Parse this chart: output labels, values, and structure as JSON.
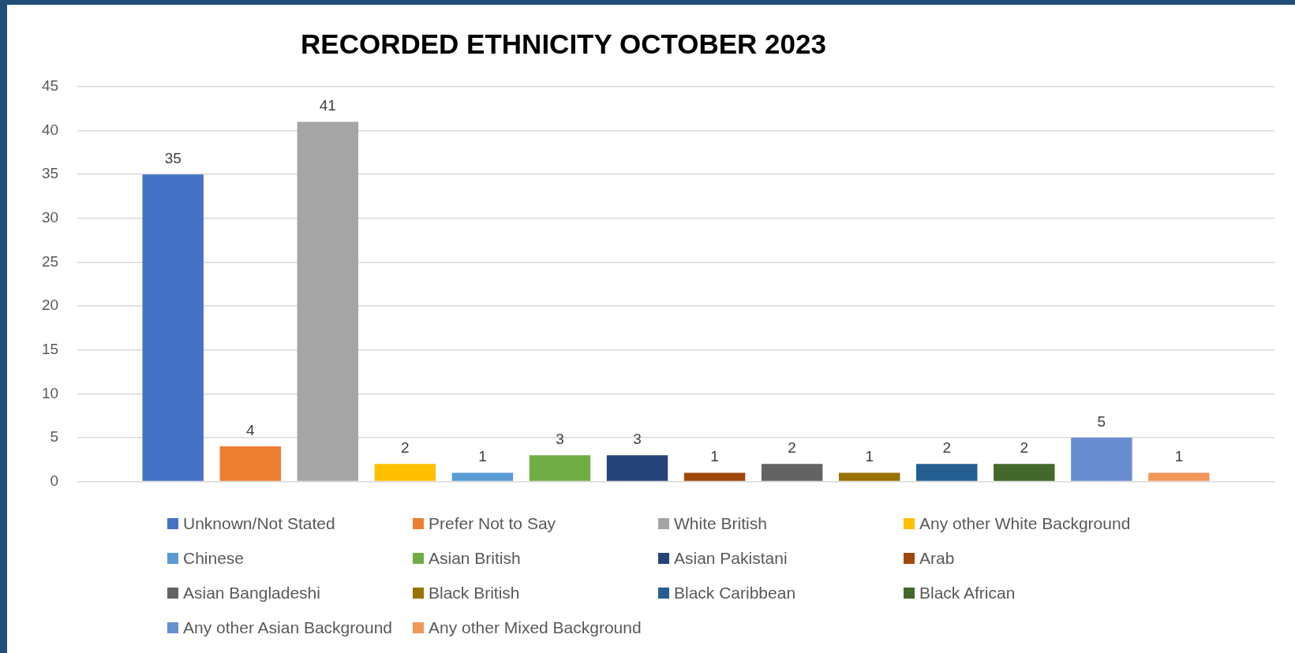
{
  "chart_data": {
    "type": "bar",
    "title": "RECORDED ETHNICITY OCTOBER 2023",
    "categories": [
      null
    ],
    "series": [
      {
        "name": "Unknown/Not Stated",
        "color": "#4472c4",
        "values": [
          35
        ]
      },
      {
        "name": "Prefer Not to Say",
        "color": "#ed7d31",
        "values": [
          4
        ]
      },
      {
        "name": "White British",
        "color": "#a5a5a5",
        "values": [
          41
        ]
      },
      {
        "name": "Any other White Background",
        "color": "#ffc000",
        "values": [
          2
        ]
      },
      {
        "name": "Chinese",
        "color": "#5b9bd5",
        "values": [
          1
        ]
      },
      {
        "name": "Asian British",
        "color": "#70ad47",
        "values": [
          3
        ]
      },
      {
        "name": "Asian Pakistani",
        "color": "#264478",
        "values": [
          3
        ]
      },
      {
        "name": "Arab",
        "color": "#9e480e",
        "values": [
          1
        ]
      },
      {
        "name": "Asian Bangladeshi",
        "color": "#636363",
        "values": [
          2
        ]
      },
      {
        "name": "Black British",
        "color": "#997300",
        "values": [
          1
        ]
      },
      {
        "name": "Black Caribbean",
        "color": "#255e91",
        "values": [
          2
        ]
      },
      {
        "name": "Black African",
        "color": "#43682b",
        "values": [
          2
        ]
      },
      {
        "name": "Any other Asian Background",
        "color": "#698ed0",
        "values": [
          5
        ]
      },
      {
        "name": "Any other Mixed Background",
        "color": "#f1975a",
        "values": [
          1
        ]
      }
    ],
    "ylim": [
      0,
      45
    ],
    "yticks": [
      0,
      5,
      10,
      15,
      20,
      25,
      30,
      35,
      40,
      45
    ],
    "grid": "y",
    "data_labels": true,
    "legend": "bottom"
  }
}
